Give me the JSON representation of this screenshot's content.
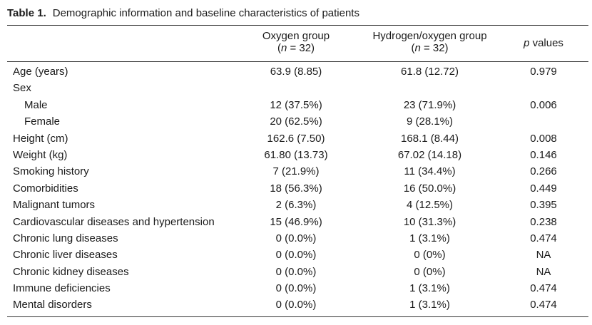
{
  "caption": {
    "number": "Table 1.",
    "text": "Demographic information and baseline characteristics of patients"
  },
  "header": {
    "oxygen_group": {
      "label": "Oxygen group",
      "n_prefix": "(",
      "n_symbol": "n",
      "n_value": " = 32)"
    },
    "hydrogen_group": {
      "label": "Hydrogen/oxygen group",
      "n_prefix": "(",
      "n_symbol": "n",
      "n_value": " = 32)"
    },
    "p_values": {
      "symbol": "p",
      "label": " values"
    }
  },
  "rows": [
    {
      "label": "Age (years)",
      "oxygen": "63.9 (8.85)",
      "hydrogen": "61.8 (12.72)",
      "p": "0.979",
      "indent": false
    },
    {
      "label": "Sex",
      "oxygen": "",
      "hydrogen": "",
      "p": "",
      "indent": false
    },
    {
      "label": "Male",
      "oxygen": "12 (37.5%)",
      "hydrogen": "23 (71.9%)",
      "p": "0.006",
      "indent": true
    },
    {
      "label": "Female",
      "oxygen": "20 (62.5%)",
      "hydrogen": "9 (28.1%)",
      "p": "",
      "indent": true
    },
    {
      "label": "Height (cm)",
      "oxygen": "162.6 (7.50)",
      "hydrogen": "168.1 (8.44)",
      "p": "0.008",
      "indent": false
    },
    {
      "label": "Weight (kg)",
      "oxygen": "61.80 (13.73)",
      "hydrogen": "67.02 (14.18)",
      "p": "0.146",
      "indent": false
    },
    {
      "label": "Smoking history",
      "oxygen": "7 (21.9%)",
      "hydrogen": "11 (34.4%)",
      "p": "0.266",
      "indent": false
    },
    {
      "label": "Comorbidities",
      "oxygen": "18 (56.3%)",
      "hydrogen": "16 (50.0%)",
      "p": "0.449",
      "indent": false
    },
    {
      "label": "Malignant tumors",
      "oxygen": "2 (6.3%)",
      "hydrogen": "4 (12.5%)",
      "p": "0.395",
      "indent": false
    },
    {
      "label": "Cardiovascular diseases and hypertension",
      "oxygen": "15 (46.9%)",
      "hydrogen": "10 (31.3%)",
      "p": "0.238",
      "indent": false
    },
    {
      "label": "Chronic lung diseases",
      "oxygen": "0 (0.0%)",
      "hydrogen": "1 (3.1%)",
      "p": "0.474",
      "indent": false
    },
    {
      "label": "Chronic liver diseases",
      "oxygen": "0 (0.0%)",
      "hydrogen": "0 (0%)",
      "p": "NA",
      "indent": false
    },
    {
      "label": "Chronic kidney diseases",
      "oxygen": "0 (0.0%)",
      "hydrogen": "0 (0%)",
      "p": "NA",
      "indent": false
    },
    {
      "label": "Immune deficiencies",
      "oxygen": "0 (0.0%)",
      "hydrogen": "1 (3.1%)",
      "p": "0.474",
      "indent": false
    },
    {
      "label": "Mental disorders",
      "oxygen": "0 (0.0%)",
      "hydrogen": "1 (3.1%)",
      "p": "0.474",
      "indent": false
    }
  ]
}
